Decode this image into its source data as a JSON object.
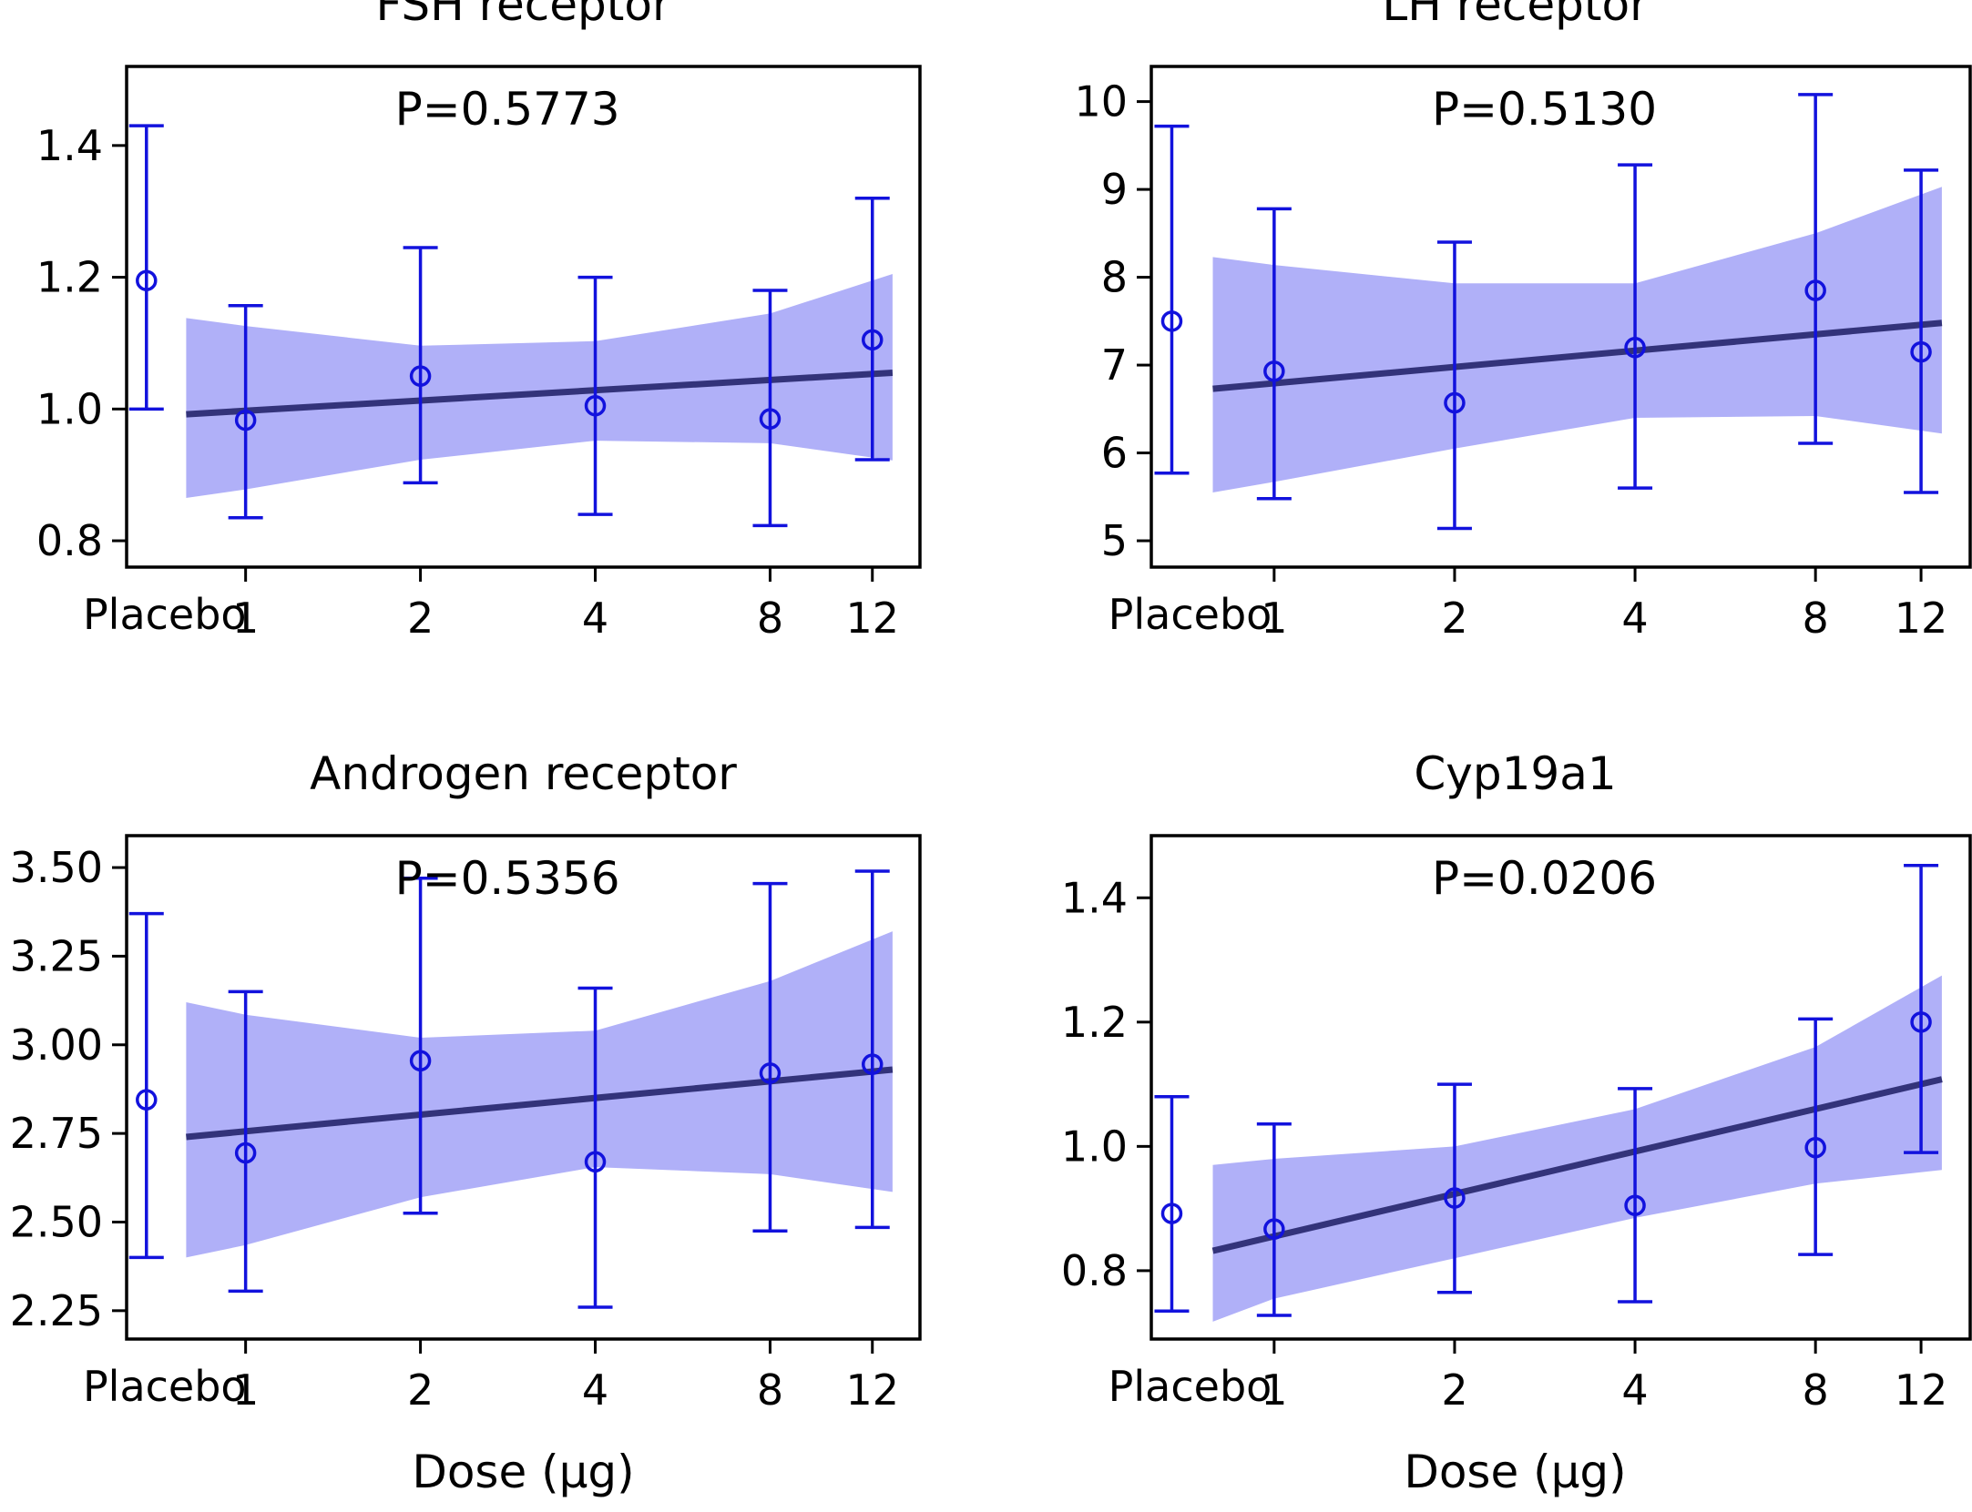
{
  "chart_data": [
    {
      "type": "scatter",
      "title": "FSH receptor",
      "pvalue_text": "P=0.5773",
      "categories": [
        "Placebo",
        "1",
        "2",
        "4",
        "8",
        "12"
      ],
      "xlabel": "",
      "ylabel": "",
      "ylim": [
        0.76,
        1.52
      ],
      "yticks": [
        0.8,
        1.0,
        1.2,
        1.4
      ],
      "ytick_labels": [
        "0.8",
        "1.0",
        "1.2",
        "1.4"
      ],
      "series": [
        {
          "name": "mean",
          "values": [
            1.195,
            0.983,
            1.05,
            1.005,
            0.985,
            1.105
          ]
        },
        {
          "name": "error_low",
          "values": [
            1.0,
            0.835,
            0.888,
            0.84,
            0.823,
            0.923
          ]
        },
        {
          "name": "error_high",
          "values": [
            1.43,
            1.157,
            1.245,
            1.2,
            1.18,
            1.32
          ]
        }
      ],
      "fit": {
        "dose_start": 0.79,
        "dose_end": 13,
        "start": 0.992,
        "end": 1.055
      },
      "band": {
        "x": [
          0.79,
          1,
          2,
          4,
          8,
          13
        ],
        "lower": [
          0.865,
          0.878,
          0.923,
          0.952,
          0.948,
          0.922
        ],
        "upper": [
          1.138,
          1.126,
          1.096,
          1.103,
          1.145,
          1.205
        ]
      },
      "colors": {
        "points": "#1212dd",
        "fit": "#33337a",
        "band": "#b0b0f8"
      }
    },
    {
      "type": "scatter",
      "title": "LH receptor",
      "pvalue_text": "P=0.5130",
      "categories": [
        "Placebo",
        "1",
        "2",
        "4",
        "8",
        "12"
      ],
      "xlabel": "",
      "ylabel": "",
      "ylim": [
        4.7,
        10.4
      ],
      "yticks": [
        5,
        6,
        7,
        8,
        9,
        10
      ],
      "ytick_labels": [
        "5",
        "6",
        "7",
        "8",
        "9",
        "10"
      ],
      "series": [
        {
          "name": "mean",
          "values": [
            7.5,
            6.93,
            6.57,
            7.2,
            7.85,
            7.15
          ]
        },
        {
          "name": "error_low",
          "values": [
            5.77,
            5.48,
            5.14,
            5.6,
            6.11,
            5.55
          ]
        },
        {
          "name": "error_high",
          "values": [
            9.72,
            8.78,
            8.4,
            9.28,
            10.08,
            9.22
          ]
        }
      ],
      "fit": {
        "dose_start": 0.79,
        "dose_end": 13,
        "start": 6.73,
        "end": 7.48
      },
      "band": {
        "x": [
          0.79,
          1,
          2,
          4,
          8,
          13
        ],
        "lower": [
          5.55,
          5.67,
          6.05,
          6.4,
          6.42,
          6.22
        ],
        "upper": [
          8.23,
          8.14,
          7.93,
          7.93,
          8.5,
          9.03
        ]
      },
      "colors": {
        "points": "#1212dd",
        "fit": "#33337a",
        "band": "#b0b0f8"
      }
    },
    {
      "type": "scatter",
      "title": "Androgen receptor",
      "pvalue_text": "P=0.5356",
      "categories": [
        "Placebo",
        "1",
        "2",
        "4",
        "8",
        "12"
      ],
      "xlabel": "Dose (μg)",
      "ylabel": "",
      "ylim": [
        2.17,
        3.59
      ],
      "yticks": [
        2.25,
        2.5,
        2.75,
        3.0,
        3.25,
        3.5
      ],
      "ytick_labels": [
        "2.25",
        "2.50",
        "2.75",
        "3.00",
        "3.25",
        "3.50"
      ],
      "series": [
        {
          "name": "mean",
          "values": [
            2.845,
            2.695,
            2.955,
            2.67,
            2.92,
            2.945
          ]
        },
        {
          "name": "error_low",
          "values": [
            2.4,
            2.305,
            2.525,
            2.26,
            2.475,
            2.485
          ]
        },
        {
          "name": "error_high",
          "values": [
            3.37,
            3.15,
            3.47,
            3.16,
            3.455,
            3.49
          ]
        }
      ],
      "fit": {
        "dose_start": 0.79,
        "dose_end": 13,
        "start": 2.74,
        "end": 2.93
      },
      "band": {
        "x": [
          0.79,
          1,
          2,
          4,
          8,
          13
        ],
        "lower": [
          2.4,
          2.435,
          2.57,
          2.655,
          2.635,
          2.585
        ],
        "upper": [
          3.12,
          3.085,
          3.02,
          3.04,
          3.18,
          3.32
        ]
      },
      "colors": {
        "points": "#1212dd",
        "fit": "#33337a",
        "band": "#b0b0f8"
      }
    },
    {
      "type": "scatter",
      "title": "Cyp19a1",
      "pvalue_text": "P=0.0206",
      "categories": [
        "Placebo",
        "1",
        "2",
        "4",
        "8",
        "12"
      ],
      "xlabel": "Dose (μg)",
      "ylabel": "",
      "ylim": [
        0.69,
        1.5
      ],
      "yticks": [
        0.8,
        1.0,
        1.2,
        1.4
      ],
      "ytick_labels": [
        "0.8",
        "1.0",
        "1.2",
        "1.4"
      ],
      "series": [
        {
          "name": "mean",
          "values": [
            0.892,
            0.867,
            0.917,
            0.905,
            0.998,
            1.2
          ]
        },
        {
          "name": "error_low",
          "values": [
            0.735,
            0.728,
            0.765,
            0.75,
            0.826,
            0.99
          ]
        },
        {
          "name": "error_high",
          "values": [
            1.08,
            1.036,
            1.1,
            1.093,
            1.205,
            1.452
          ]
        }
      ],
      "fit": {
        "dose_start": 0.79,
        "dose_end": 13,
        "start": 0.832,
        "end": 1.108
      },
      "band": {
        "x": [
          0.79,
          1,
          2,
          4,
          8,
          13
        ],
        "lower": [
          0.718,
          0.755,
          0.82,
          0.885,
          0.94,
          0.962
        ],
        "upper": [
          0.97,
          0.98,
          1.0,
          1.06,
          1.16,
          1.275
        ]
      },
      "colors": {
        "points": "#1212dd",
        "fit": "#33337a",
        "band": "#b0b0f8"
      }
    }
  ]
}
